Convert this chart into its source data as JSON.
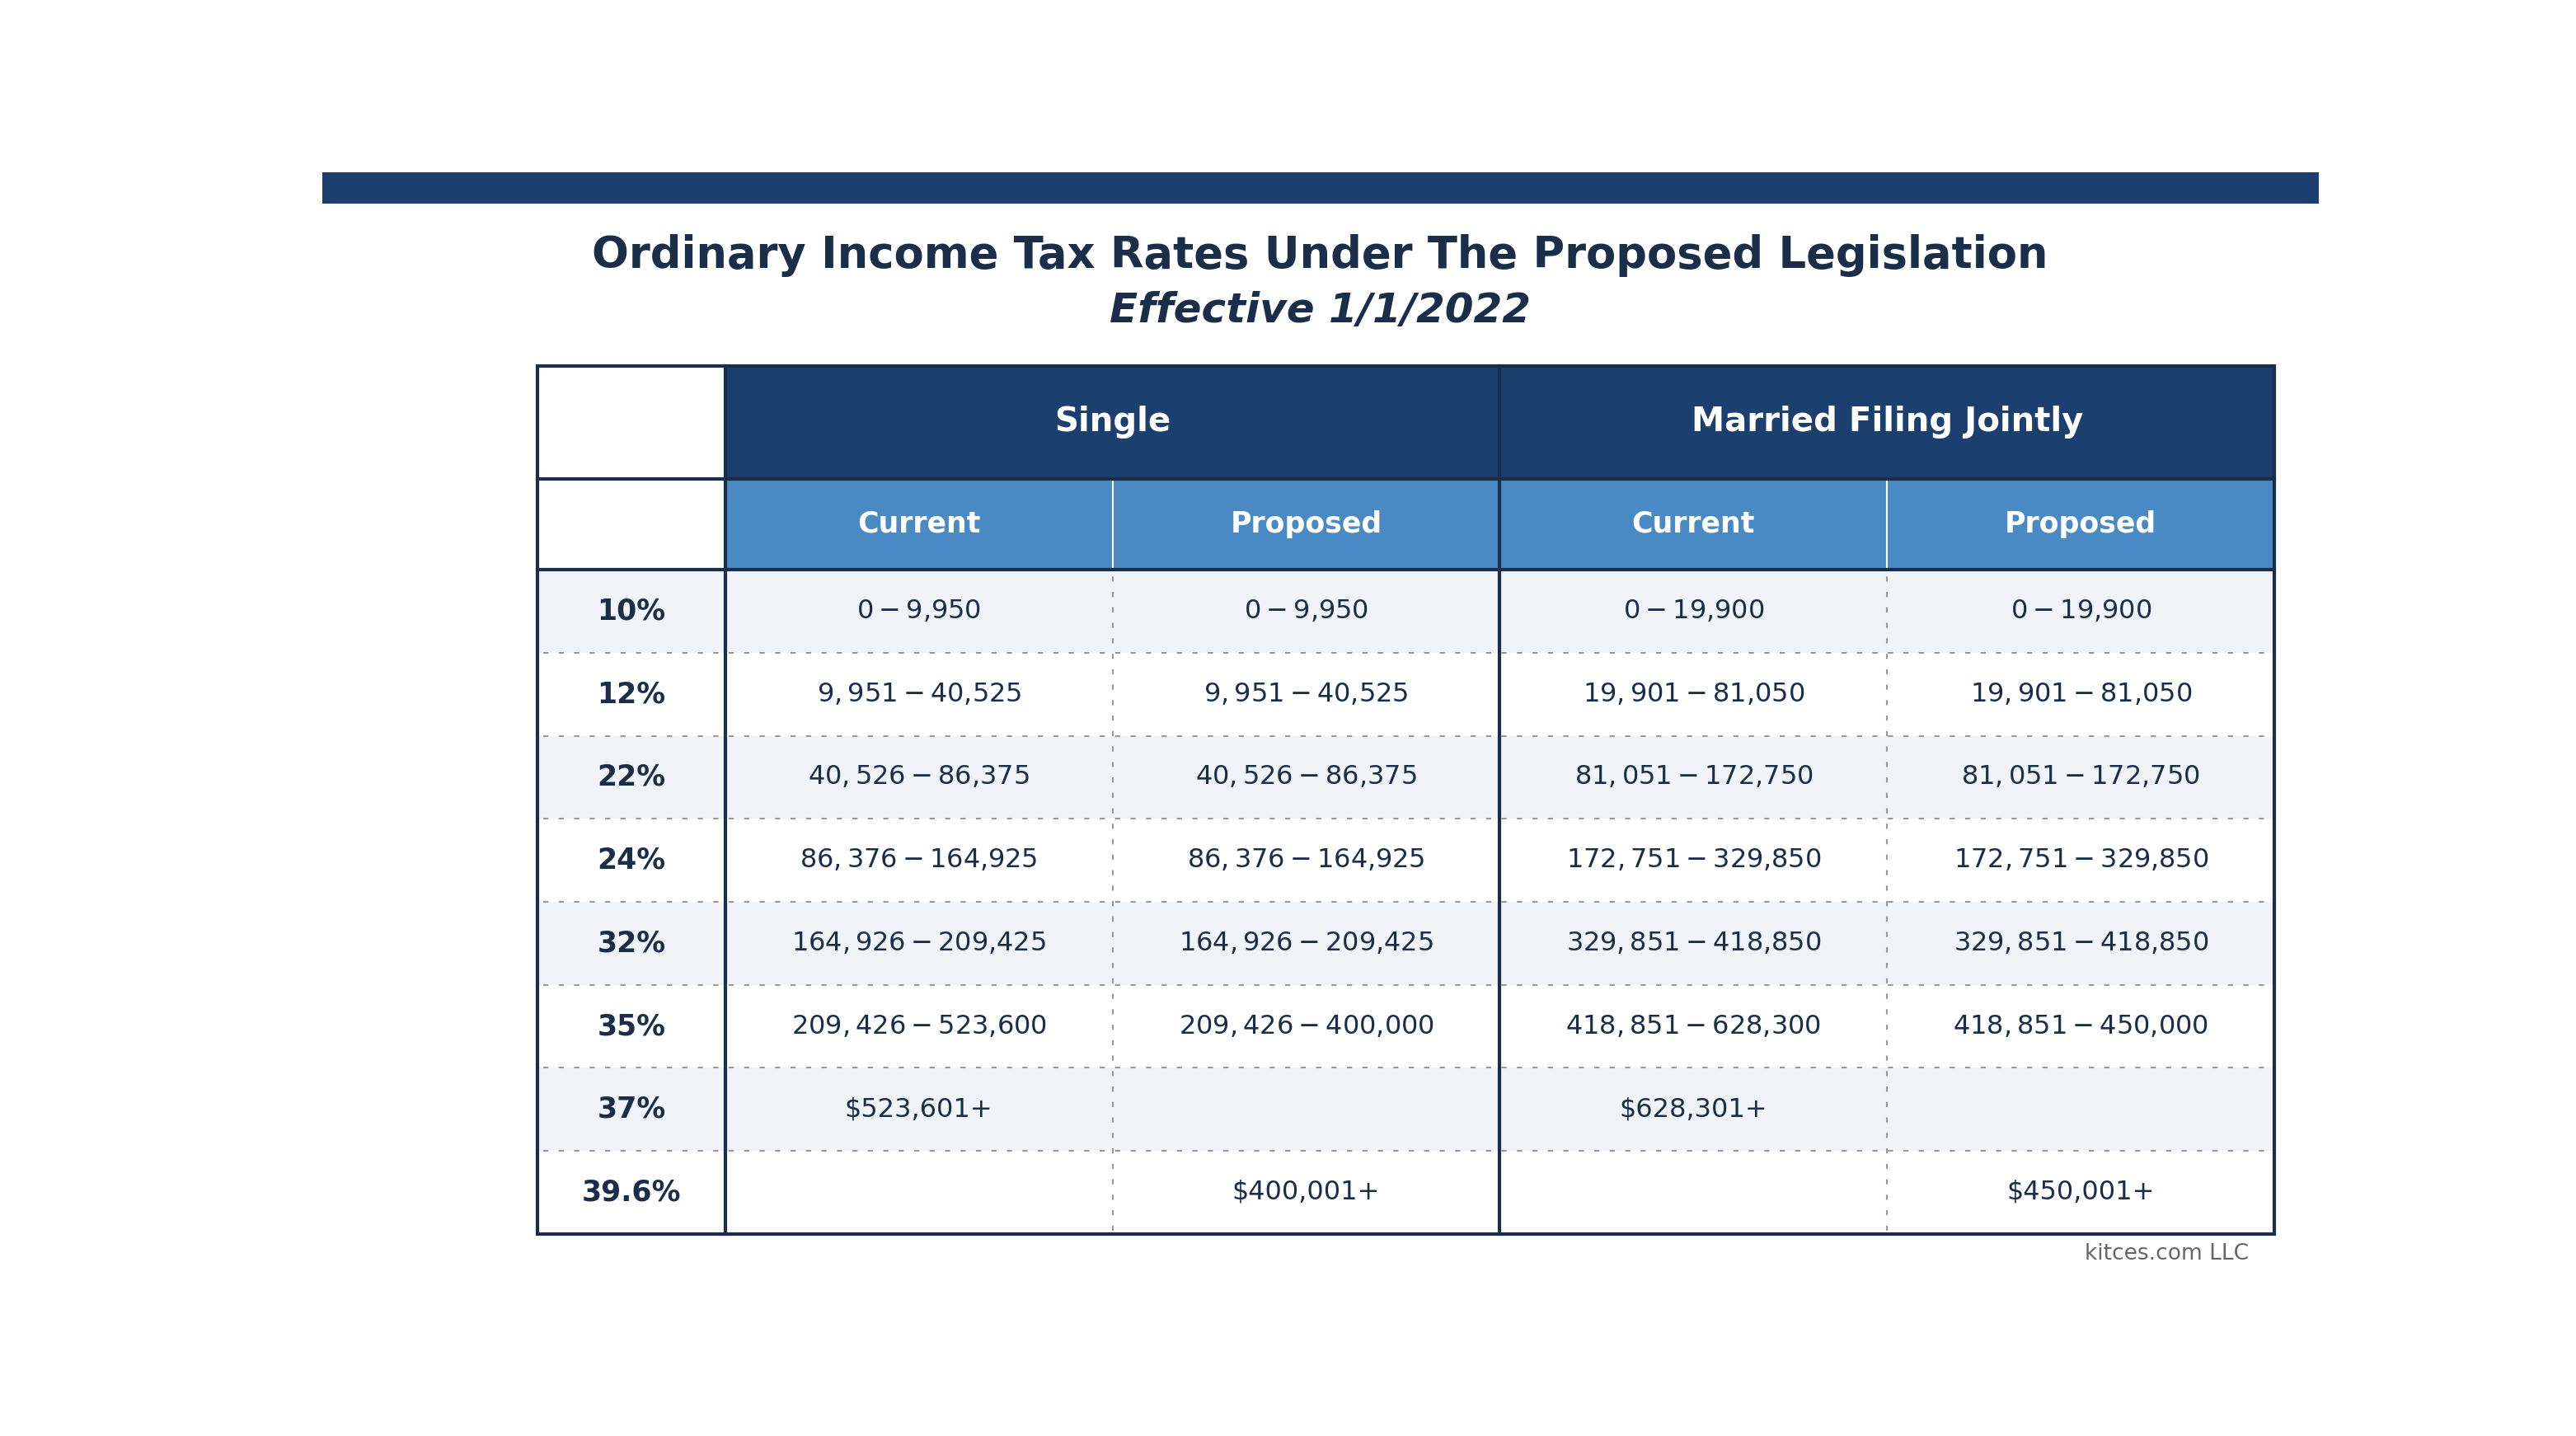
{
  "title": "Ordinary Income Tax Rates Under The Proposed Legislation",
  "subtitle": "Effective 1/1/2022",
  "title_color": "#1a2e4a",
  "subtitle_color": "#1a2e4a",
  "header1_color": "#1b3f6e",
  "header2_color": "#4a8ac4",
  "bg_color": "#ffffff",
  "border_color": "#1a2e4a",
  "row_bg_odd": "#f0f4f8",
  "row_bg_even": "#ffffff",
  "dotted_line_color": "#999999",
  "text_color": "#1a2e4a",
  "col_headers": [
    "Single",
    "Married Filing Jointly"
  ],
  "sub_headers": [
    "Current",
    "Proposed",
    "Current",
    "Proposed"
  ],
  "rates": [
    "10%",
    "12%",
    "22%",
    "24%",
    "32%",
    "35%",
    "37%",
    "39.6%"
  ],
  "single_current": [
    "$0 - $9,950",
    "$9,951 - $40,525",
    "$40,526 - $86,375",
    "$86,376 - $164,925",
    "$164,926 - $209,425",
    "$209,426 - $523,600",
    "$523,601+",
    ""
  ],
  "single_proposed": [
    "$0 - $9,950",
    "$9,951 - $40,525",
    "$40,526 - $86,375",
    "$86,376 - $164,925",
    "$164,926 - $209,425",
    "$209,426 - $400,000",
    "",
    "$400,001+"
  ],
  "married_current": [
    "$0 - $19,900",
    "$19,901 - $81,050",
    "$81,051 - $172,750",
    "$172,751 - $329,850",
    "$329,851 - $418,850",
    "$418,851 - $628,300",
    "$628,301+",
    ""
  ],
  "married_proposed": [
    "$0 - $19,900",
    "$19,901 - $81,050",
    "$81,051 - $172,750",
    "$172,751 - $329,850",
    "$329,851 - $418,850",
    "$418,851 - $450,000",
    "",
    "$450,001+"
  ],
  "footer": "kitces.com LLC",
  "top_bar_color": "#1b3f6e"
}
